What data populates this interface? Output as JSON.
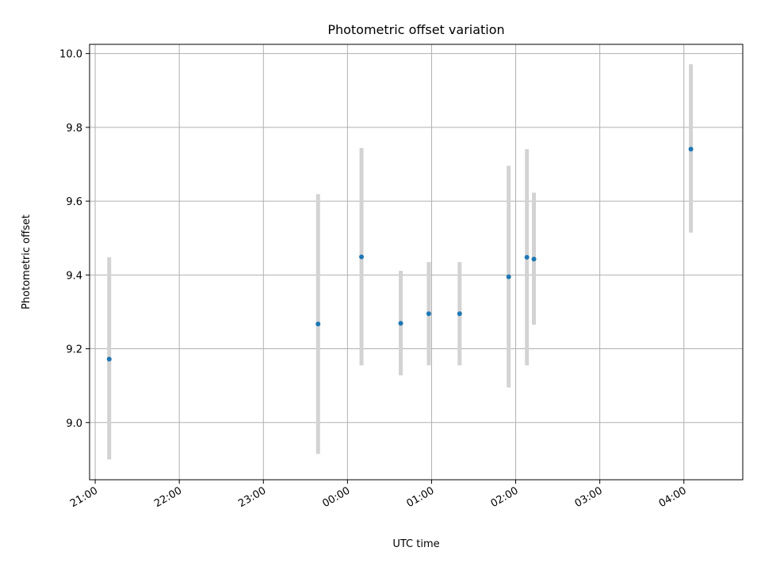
{
  "chart_data": {
    "type": "scatter",
    "title": "Photometric offset variation",
    "xlabel": "UTC time",
    "ylabel": "Photometric offset",
    "xlim": [
      "20:56",
      "04:42"
    ],
    "ylim": [
      8.845,
      10.025
    ],
    "xticks": [
      "21:00",
      "22:00",
      "23:00",
      "00:00",
      "01:00",
      "02:00",
      "03:00",
      "04:00"
    ],
    "yticks": [
      9.0,
      9.2,
      9.4,
      9.6,
      9.8,
      10.0
    ],
    "ytick_labels": [
      "9.0",
      "9.2",
      "9.4",
      "9.6",
      "9.8",
      "10.0"
    ],
    "grid": true,
    "colors": {
      "point": "#1f77b4",
      "errorbar": "#d3d3d3"
    },
    "points": [
      {
        "x": "21:10",
        "y": 9.172,
        "ylow": 8.9,
        "yhigh": 9.448
      },
      {
        "x": "23:39",
        "y": 9.267,
        "ylow": 8.915,
        "yhigh": 9.619
      },
      {
        "x": "00:10",
        "y": 9.449,
        "ylow": 9.155,
        "yhigh": 9.744
      },
      {
        "x": "00:38",
        "y": 9.269,
        "ylow": 9.128,
        "yhigh": 9.411
      },
      {
        "x": "00:58",
        "y": 9.295,
        "ylow": 9.155,
        "yhigh": 9.435
      },
      {
        "x": "01:20",
        "y": 9.295,
        "ylow": 9.155,
        "yhigh": 9.435
      },
      {
        "x": "01:55",
        "y": 9.395,
        "ylow": 9.095,
        "yhigh": 9.696
      },
      {
        "x": "02:08",
        "y": 9.448,
        "ylow": 9.155,
        "yhigh": 9.741
      },
      {
        "x": "02:13",
        "y": 9.443,
        "ylow": 9.265,
        "yhigh": 9.623
      },
      {
        "x": "04:05",
        "y": 9.741,
        "ylow": 9.515,
        "yhigh": 9.971
      }
    ]
  }
}
